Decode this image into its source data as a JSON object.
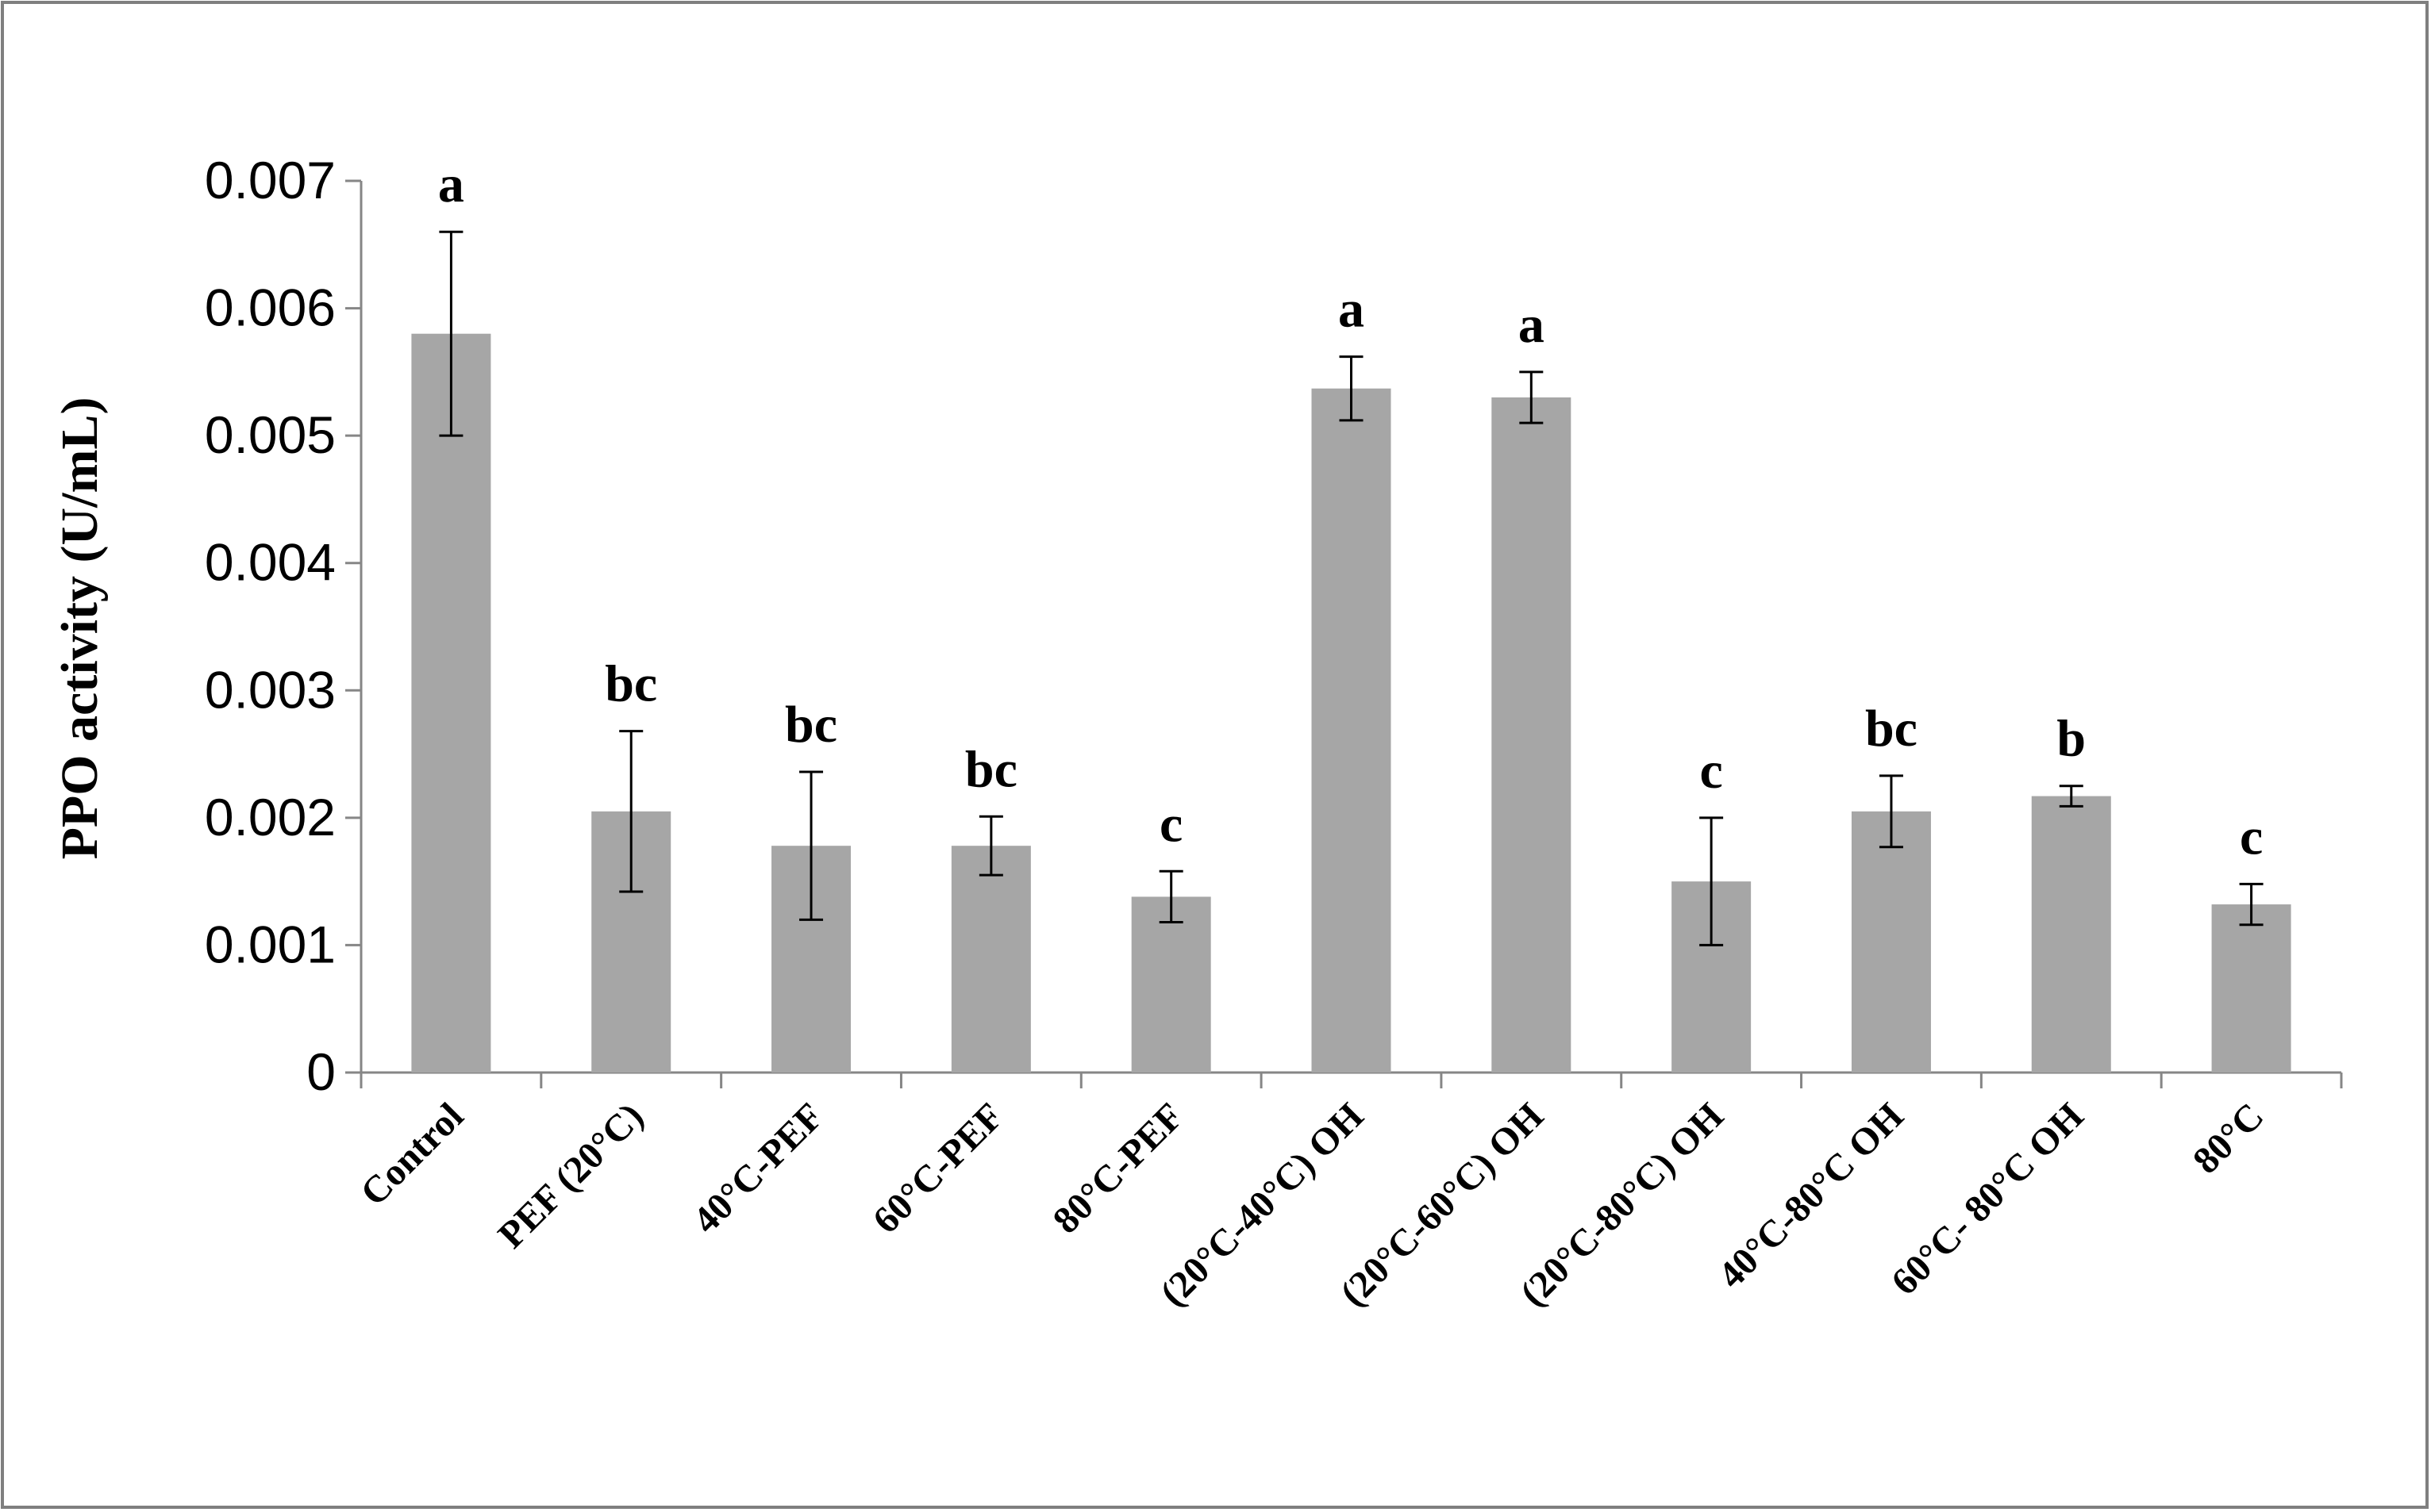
{
  "chart_data": {
    "type": "bar",
    "title": "",
    "xlabel": "",
    "ylabel": "PPO activity (U/mL)",
    "ylim": [
      0,
      0.007
    ],
    "yticks": [
      "0",
      "0.001",
      "0.002",
      "0.003",
      "0.004",
      "0.005",
      "0.006",
      "0.007"
    ],
    "grid": false,
    "legend": "none",
    "bar_color": "#a6a6a6",
    "categories": [
      "Control",
      "PEF (20°C)",
      "40°C-PEF",
      "60°C-PEF",
      "80°C-PEF",
      "(20°C-40°C) OH",
      "(20°C-60°C) OH",
      "(20°C-80°C) OH",
      "40°C-80°C OH",
      "60°C- 80°C OH",
      "80°C"
    ],
    "values": [
      0.0058,
      0.00205,
      0.00178,
      0.00178,
      0.00138,
      0.00537,
      0.0053,
      0.0015,
      0.00205,
      0.00217,
      0.00132
    ],
    "errors": [
      0.0008,
      0.00063,
      0.00058,
      0.00023,
      0.0002,
      0.00025,
      0.0002,
      0.0005,
      0.00028,
      8e-05,
      0.00016
    ],
    "significance": [
      "a",
      "bc",
      "bc",
      "bc",
      "c",
      "a",
      "a",
      "c",
      "bc",
      "b",
      "c"
    ]
  }
}
